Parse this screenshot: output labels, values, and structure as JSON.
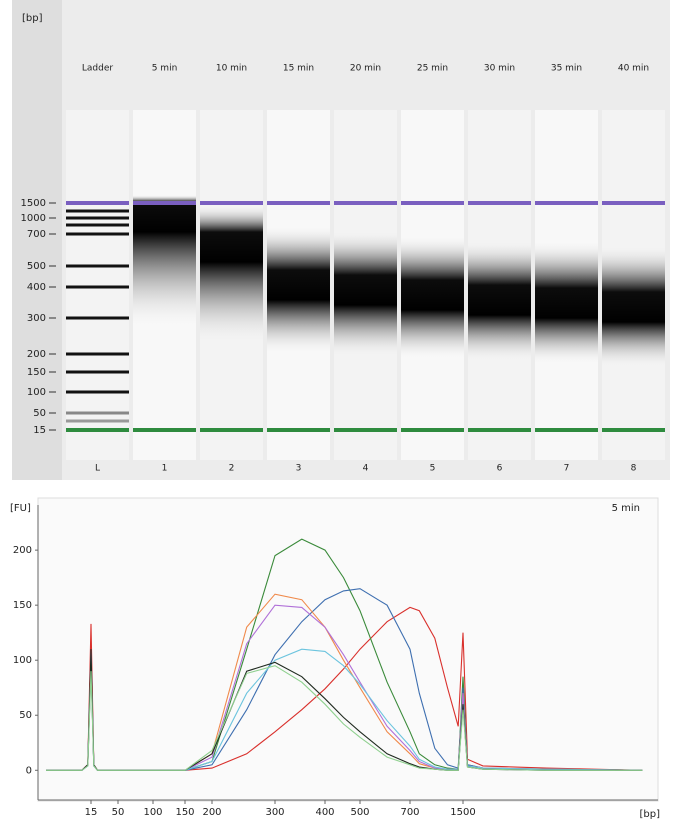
{
  "gel": {
    "axis_label": "[bp]",
    "ladder_sizes": [
      1500,
      1000,
      700,
      500,
      400,
      300,
      200,
      150,
      100,
      50,
      15
    ],
    "lanes": [
      {
        "header": "Ladder",
        "number": "L"
      },
      {
        "header": "5 min",
        "number": "1"
      },
      {
        "header": "10 min",
        "number": "2"
      },
      {
        "header": "15 min",
        "number": "3"
      },
      {
        "header": "20 min",
        "number": "4"
      },
      {
        "header": "25 min",
        "number": "5"
      },
      {
        "header": "30 min",
        "number": "6"
      },
      {
        "header": "35 min",
        "number": "7"
      },
      {
        "header": "40 min",
        "number": "8"
      }
    ]
  },
  "chart_data": {
    "type": "line",
    "title": "5 min",
    "ylabel": "[FU]",
    "xlabel": "[bp]",
    "x": [
      2,
      10,
      13,
      15,
      17,
      20,
      50,
      100,
      150,
      200,
      250,
      300,
      350,
      400,
      450,
      500,
      600,
      700,
      800,
      1000,
      1200,
      1400,
      1500,
      1600,
      2000,
      5000,
      20000
    ],
    "series": [
      {
        "color": "#d9302c",
        "values": [
          0,
          0,
          5,
          133,
          5,
          0,
          0,
          0,
          0,
          2,
          15,
          35,
          55,
          74,
          92,
          110,
          135,
          148,
          145,
          120,
          75,
          40,
          125,
          10,
          4,
          2,
          0
        ]
      },
      {
        "color": "#3a8a3a",
        "values": [
          0,
          0,
          5,
          95,
          5,
          0,
          0,
          0,
          0,
          8,
          110,
          195,
          210,
          200,
          175,
          145,
          80,
          35,
          15,
          5,
          2,
          1,
          85,
          5,
          2,
          1,
          0
        ]
      },
      {
        "color": "#3e6fb0",
        "values": [
          0,
          0,
          4,
          100,
          4,
          0,
          0,
          0,
          0,
          5,
          55,
          105,
          135,
          155,
          163,
          165,
          150,
          110,
          70,
          20,
          5,
          2,
          75,
          5,
          2,
          1,
          0
        ]
      },
      {
        "color": "#f08a4b",
        "values": [
          0,
          0,
          5,
          110,
          5,
          0,
          0,
          0,
          0,
          15,
          130,
          160,
          155,
          130,
          100,
          75,
          35,
          15,
          6,
          2,
          1,
          1,
          70,
          4,
          2,
          1,
          0
        ]
      },
      {
        "color": "#b070d8",
        "values": [
          0,
          0,
          5,
          110,
          5,
          0,
          0,
          0,
          0,
          12,
          115,
          150,
          148,
          130,
          105,
          80,
          40,
          18,
          8,
          2,
          1,
          1,
          70,
          4,
          2,
          1,
          0
        ]
      },
      {
        "color": "#6cc4de",
        "values": [
          0,
          0,
          4,
          100,
          4,
          0,
          0,
          0,
          0,
          8,
          70,
          100,
          110,
          108,
          95,
          78,
          45,
          22,
          10,
          3,
          1,
          1,
          60,
          4,
          2,
          1,
          0
        ]
      },
      {
        "color": "#1f2a1f",
        "values": [
          0,
          0,
          5,
          110,
          5,
          0,
          0,
          0,
          0,
          15,
          90,
          98,
          85,
          65,
          48,
          35,
          15,
          6,
          3,
          1,
          0,
          0,
          60,
          3,
          1,
          0,
          0
        ]
      },
      {
        "color": "#8fd08f",
        "values": [
          0,
          0,
          4,
          90,
          4,
          0,
          0,
          0,
          0,
          18,
          88,
          95,
          80,
          60,
          42,
          30,
          12,
          5,
          2,
          1,
          0,
          0,
          55,
          3,
          1,
          0,
          0
        ]
      }
    ],
    "xlim": [
      1.4,
      24000
    ],
    "ylim": [
      -27,
      241
    ],
    "xticks": [
      15,
      50,
      100,
      150,
      200,
      300,
      400,
      500,
      700,
      1500
    ],
    "yticks": [
      0,
      50,
      100,
      150,
      200
    ],
    "axis_color": "#d9302c"
  }
}
